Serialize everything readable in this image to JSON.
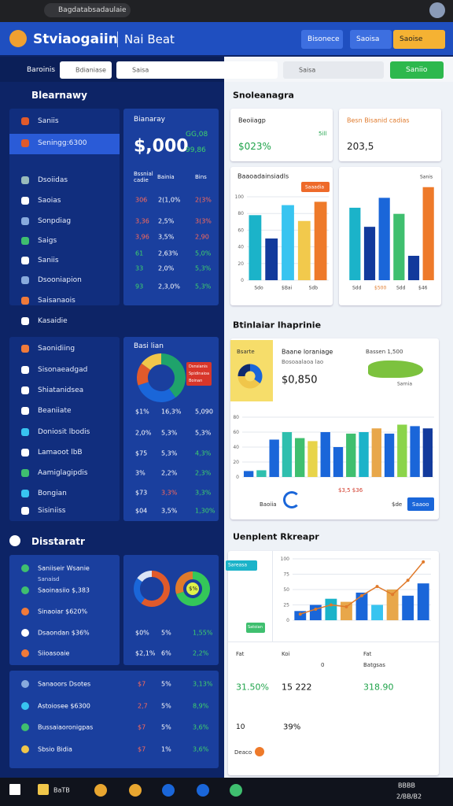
{
  "browser": {
    "tab": "Bagdatabsadaulaie"
  },
  "header": {
    "title": "Stviaogaiin",
    "subtitle": "Nai Beat",
    "buttons": [
      "Bisonece",
      "Saoisa",
      "Saoise"
    ]
  },
  "toolbar": {
    "menu": "Baroinis",
    "filter": "Bdianiase",
    "search_left": "Saisa",
    "search_right": "Saisa",
    "button": "Saniio"
  },
  "left": {
    "title": "Blearnawy",
    "nav": [
      "Saniis",
      "Seningg:6300",
      "Dsoiidas",
      "Saoias",
      "Sonpdiag",
      "Saigs",
      "Saniis",
      "Dsooniapion",
      "Saisanaois",
      "Kasaidie",
      "Saonidiing",
      "Sisonaeadgad",
      "Shiatanidsea",
      "Beaniiate",
      "Doniosit lbodis",
      "Lamaoot lbB",
      "Aamiglagipdis",
      "Bongian",
      "Sisiniiss"
    ],
    "stats": {
      "label": "Bianaray",
      "value": "$,000",
      "badges": [
        "GG,08",
        "99,86"
      ],
      "headers": [
        "Bssnial cadie",
        "Bainia",
        "Bins"
      ],
      "rows": [
        [
          "306",
          "2(1,0%",
          "2(3%"
        ],
        [
          "3,36",
          "2,5%",
          "3(3%"
        ],
        [
          "3,96",
          "3,5%",
          "2,90"
        ],
        [
          "61",
          "2,63%",
          "5,0%"
        ],
        [
          "33",
          "2,0%",
          "5,3%"
        ],
        [
          "93",
          "2,3,0%",
          "5,3%"
        ]
      ]
    },
    "panel": {
      "title": "Basi lian",
      "legend": [
        "Dsnsianis",
        "Spidinaioa",
        "Boinan"
      ],
      "donut": {
        "values": [
          40,
          30,
          15,
          15
        ],
        "colors": [
          "#1fa36b",
          "#1a66d9",
          "#e05a2b",
          "#f0c64a"
        ]
      },
      "rows": [
        [
          "$1%",
          "16,3%",
          "5,090"
        ],
        [
          "2,0%",
          "5,3%",
          "5,3%"
        ],
        [
          "$75",
          "5,3%",
          "4,3%"
        ],
        [
          "3%",
          "2,2%",
          "2,3%"
        ],
        [
          "$73",
          "3,3%",
          "3,3%"
        ],
        [
          "$04",
          "3,5%",
          "1,30%"
        ]
      ]
    },
    "section3": {
      "title": "Disstaratr",
      "items": [
        "Saniiseir Wsanie",
        "Saoinasiio $,383",
        "Sinaoiar $620%",
        "Dsaondan $36%",
        "Siioasoaie"
      ],
      "sub": "Sanaisd",
      "donuts": [
        {
          "values": [
            60,
            25,
            15
          ],
          "colors": [
            "#e05a2b",
            "#1a66d9",
            "#dbe4f5"
          ]
        },
        {
          "values": [
            70,
            30
          ],
          "colors": [
            "#34c759",
            "#e07a2b"
          ]
        }
      ],
      "donut_label": "$%",
      "rows": [
        [
          "$0%",
          "5%",
          "1,55%"
        ],
        [
          "$2,1%",
          "6%",
          "2,2%"
        ]
      ]
    },
    "list": [
      [
        "Sanaoors Dsotes",
        "$7",
        "5%",
        "3,13%"
      ],
      [
        "Astoiosee $6300",
        "2,7",
        "5%",
        "8,9%"
      ],
      [
        "Bussaiaoronigpas",
        "$7",
        "5%",
        "3,6%"
      ],
      [
        "Sbsio Bidia",
        "$7",
        "1%",
        "3,6%"
      ]
    ]
  },
  "right": {
    "title": "Snoleanagra",
    "cards": [
      {
        "title": "Beoiiagp",
        "value": "$023%",
        "badge": "5ill"
      },
      {
        "title": "Besn Bisanid cadias",
        "value": "203,5"
      }
    ],
    "chart1": {
      "type": "bar",
      "title": "Baaoadainsiadls",
      "button": "Saaadia",
      "values": [
        78,
        50,
        90,
        71,
        94
      ],
      "colors": [
        "#1bb3c9",
        "#123a9c",
        "#38c4f0",
        "#f2c94c",
        "#ee7a2a"
      ],
      "ylim": [
        0,
        100
      ],
      "yticks": [
        0,
        20,
        40,
        60,
        80,
        100
      ],
      "xlabels": [
        "Sdo",
        "$Bai",
        "Sdb"
      ]
    },
    "chart2": {
      "type": "bar",
      "title": "Sanis",
      "values": [
        95,
        70,
        108,
        87,
        32,
        122
      ],
      "colors": [
        "#1bb3c9",
        "#123a9c",
        "#1a66d9",
        "#3fbf6f",
        "#123a9c",
        "#ee7a2a"
      ],
      "ylim": [
        0,
        130
      ],
      "xlabels": [
        "Sdd",
        "$500",
        "Sdd",
        "$46"
      ]
    },
    "section2": "Btinlaiar lhaprinie",
    "big": {
      "tile": "Bsarte",
      "tile_donut": {
        "values": [
          35,
          40,
          25
        ],
        "colors": [
          "#1a66d9",
          "#f0c64a",
          "#0f2a6e"
        ]
      },
      "lines": [
        "Baane loraniage",
        "Bosoaalaoa lao"
      ],
      "value": "$0,850",
      "map_title": "Bassen 1,500",
      "map_label": "Sarnia",
      "chart": {
        "type": "bar",
        "values": [
          8,
          9,
          50,
          60,
          52,
          48,
          60,
          40,
          58,
          60,
          65,
          58,
          70,
          68,
          65
        ],
        "colors": [
          "#1a66d9",
          "#2fbfae",
          "#1a66d9",
          "#2fbfae",
          "#3fbf6f",
          "#e8d44a",
          "#1a66d9",
          "#1a66d9",
          "#3fbf6f",
          "#1bb3c9",
          "#e8a74a",
          "#1a66d9",
          "#8bd44a",
          "#1a66d9",
          "#123a9c"
        ],
        "ylim": [
          0,
          80
        ],
        "yticks": [
          0,
          20,
          40,
          60,
          80
        ]
      },
      "footer": "Baoiia",
      "red": "$3,5 $36",
      "small": "$de",
      "button": "Saaoo"
    },
    "section3": "Uenplent Rkreapr",
    "bottom": {
      "tags": [
        "Sareasa",
        "Satoian"
      ],
      "chart": {
        "type": "bar",
        "values": [
          15,
          25,
          35,
          30,
          45,
          25,
          50,
          40,
          60
        ],
        "colors": [
          "#1a66d9",
          "#1a66d9",
          "#1bb3c9",
          "#e8a74a",
          "#1a66d9",
          "#38c4f0",
          "#e8a74a",
          "#1a66d9",
          "#1a66d9"
        ],
        "line": [
          10,
          18,
          25,
          22,
          40,
          55,
          42,
          65,
          95
        ],
        "line_color": "#e07a2b",
        "ylim": [
          0,
          100
        ],
        "yticks": [
          0,
          25,
          50,
          75,
          100
        ]
      },
      "stats": [
        [
          "Fat",
          "",
          "31.50%"
        ],
        [
          "Koi",
          "0",
          "15 222"
        ],
        [
          "Fat",
          "Batgsas",
          "318.90"
        ]
      ],
      "extra": [
        "10",
        "39%",
        "Deaco"
      ]
    }
  },
  "taskbar": {
    "app": "BaTB",
    "time": "BBBB",
    "date": "2/BB/B2"
  }
}
